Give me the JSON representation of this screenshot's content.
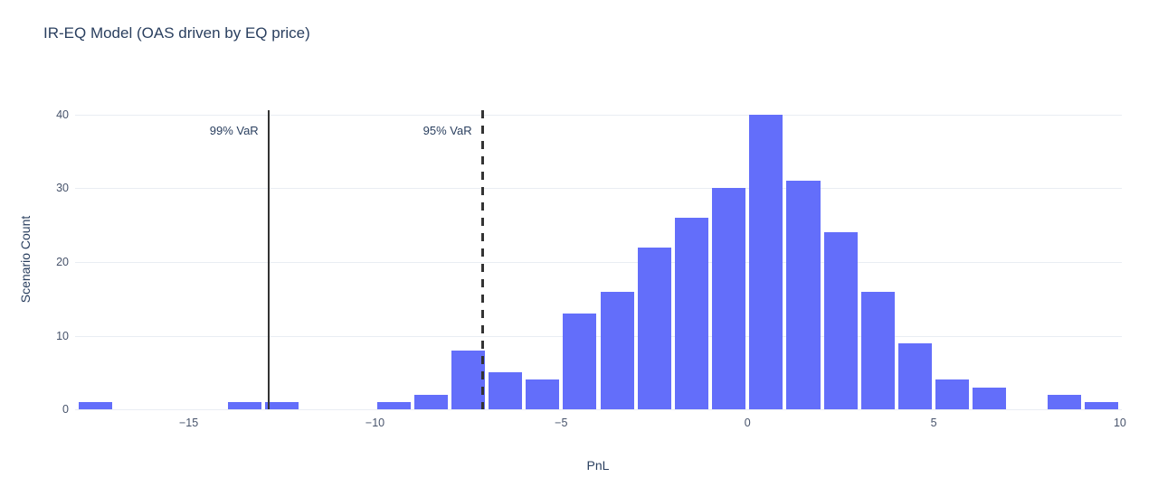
{
  "title": "IR-EQ Model (OAS driven by EQ price)",
  "colors": {
    "bar": "#636efa",
    "grid": "#e9edf3",
    "title_text": "#2a3f5f",
    "tick_text": "#47536b",
    "var_line": "#333333",
    "background": "#ffffff"
  },
  "chart_data": {
    "type": "bar",
    "subtype": "histogram",
    "title": "IR-EQ Model (OAS driven by EQ price)",
    "xlabel": "PnL",
    "ylabel": "Scenario Count",
    "xlim": [
      -18.05,
      10.05
    ],
    "ylim": [
      0,
      40.6
    ],
    "grid": true,
    "bin_width": 1,
    "bins_left_edges": [
      -18,
      -17,
      -16,
      -15,
      -14,
      -13,
      -12,
      -11,
      -10,
      -9,
      -8,
      -7,
      -6,
      -5,
      -4,
      -3,
      -2,
      -1,
      0,
      1,
      2,
      3,
      4,
      5,
      6,
      7,
      8,
      9
    ],
    "counts": [
      1,
      0,
      0,
      0,
      1,
      1,
      0,
      0,
      1,
      2,
      8,
      5,
      4,
      13,
      16,
      22,
      26,
      30,
      40,
      31,
      24,
      16,
      9,
      4,
      3,
      0,
      2,
      1
    ],
    "x_ticks": [
      -15,
      -10,
      -5,
      0,
      5,
      10
    ],
    "y_ticks": [
      0,
      10,
      20,
      30,
      40
    ],
    "annotations": [
      {
        "label": "99% VaR",
        "x": -12.86,
        "style": "solid"
      },
      {
        "label": "95% VaR",
        "x": -7.13,
        "style": "dashed"
      }
    ]
  }
}
